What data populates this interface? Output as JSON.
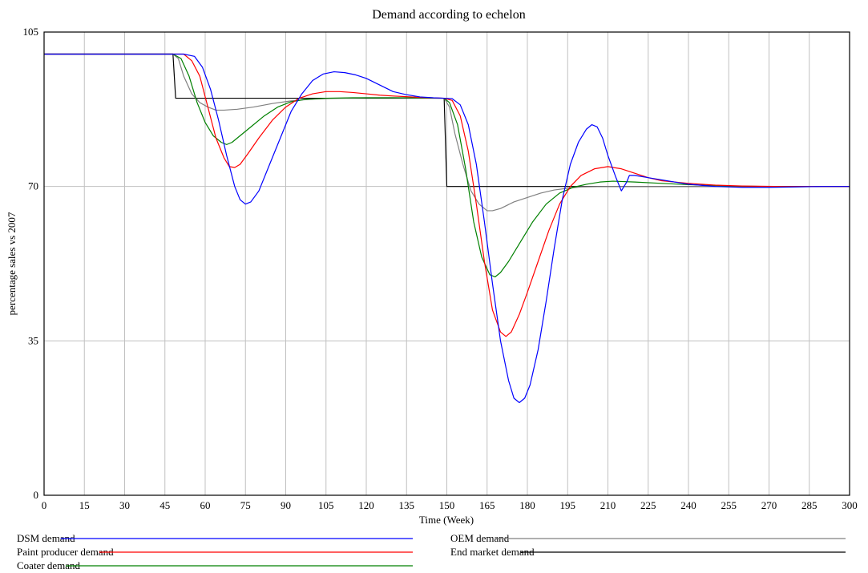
{
  "chart_data": {
    "type": "line",
    "title": "Demand according to echelon",
    "xlabel": "Time (Week)",
    "ylabel": "percentage sales vs 2007",
    "xlim": [
      0,
      300
    ],
    "ylim": [
      0,
      105
    ],
    "x_ticks": [
      "0",
      "15",
      "30",
      "45",
      "60",
      "75",
      "90",
      "105",
      "120",
      "135",
      "150",
      "165",
      "180",
      "195",
      "210",
      "225",
      "240",
      "255",
      "270",
      "285",
      "300"
    ],
    "y_ticks": [
      "0",
      "35",
      "70",
      "105"
    ],
    "grid": true,
    "legend_position": "bottom",
    "series": [
      {
        "name": "DSM demand",
        "color": "#0000ff",
        "points": [
          [
            0,
            100
          ],
          [
            48,
            100
          ],
          [
            52,
            100
          ],
          [
            56,
            99.5
          ],
          [
            59,
            97
          ],
          [
            62,
            92
          ],
          [
            65,
            85
          ],
          [
            68,
            77
          ],
          [
            71,
            70
          ],
          [
            73,
            67
          ],
          [
            75,
            66
          ],
          [
            77,
            66.5
          ],
          [
            80,
            69
          ],
          [
            84,
            75
          ],
          [
            88,
            81
          ],
          [
            92,
            87
          ],
          [
            96,
            91
          ],
          [
            100,
            94
          ],
          [
            104,
            95.5
          ],
          [
            108,
            96
          ],
          [
            112,
            95.8
          ],
          [
            116,
            95.3
          ],
          [
            120,
            94.5
          ],
          [
            125,
            93
          ],
          [
            130,
            91.5
          ],
          [
            135,
            90.8
          ],
          [
            140,
            90.3
          ],
          [
            145,
            90.1
          ],
          [
            149,
            90
          ],
          [
            152,
            89.9
          ],
          [
            155,
            88.5
          ],
          [
            158,
            84
          ],
          [
            161,
            75
          ],
          [
            164,
            62
          ],
          [
            167,
            48
          ],
          [
            170,
            35
          ],
          [
            173,
            26
          ],
          [
            175,
            22
          ],
          [
            177,
            21
          ],
          [
            179,
            22
          ],
          [
            181,
            25
          ],
          [
            184,
            33
          ],
          [
            187,
            44
          ],
          [
            190,
            56
          ],
          [
            193,
            67
          ],
          [
            196,
            75
          ],
          [
            199,
            80
          ],
          [
            202,
            83
          ],
          [
            204,
            84
          ],
          [
            206,
            83.5
          ],
          [
            208,
            81
          ],
          [
            210,
            77
          ],
          [
            213,
            72
          ],
          [
            215,
            69
          ],
          [
            217,
            71
          ],
          [
            218,
            72.5
          ],
          [
            220,
            72.5
          ],
          [
            225,
            72
          ],
          [
            230,
            71.5
          ],
          [
            235,
            71
          ],
          [
            240,
            70.5
          ],
          [
            250,
            70
          ],
          [
            260,
            69.8
          ],
          [
            270,
            69.8
          ],
          [
            280,
            69.9
          ],
          [
            290,
            70
          ],
          [
            300,
            70
          ]
        ]
      },
      {
        "name": "Paint producer demand",
        "color": "#ff0000",
        "points": [
          [
            0,
            100
          ],
          [
            48,
            100
          ],
          [
            52,
            100
          ],
          [
            55,
            98.5
          ],
          [
            58,
            95
          ],
          [
            61,
            88
          ],
          [
            64,
            81
          ],
          [
            67,
            76.5
          ],
          [
            69,
            74.5
          ],
          [
            71,
            74.3
          ],
          [
            73,
            75
          ],
          [
            76,
            77.5
          ],
          [
            80,
            81
          ],
          [
            85,
            85
          ],
          [
            90,
            88
          ],
          [
            95,
            90
          ],
          [
            100,
            91
          ],
          [
            105,
            91.5
          ],
          [
            110,
            91.5
          ],
          [
            115,
            91.3
          ],
          [
            120,
            91
          ],
          [
            125,
            90.7
          ],
          [
            130,
            90.5
          ],
          [
            140,
            90.2
          ],
          [
            149,
            90
          ],
          [
            152,
            89.5
          ],
          [
            155,
            86
          ],
          [
            158,
            78
          ],
          [
            161,
            66
          ],
          [
            164,
            53
          ],
          [
            167,
            42
          ],
          [
            170,
            37
          ],
          [
            172,
            36
          ],
          [
            174,
            37
          ],
          [
            177,
            41
          ],
          [
            180,
            46
          ],
          [
            184,
            53
          ],
          [
            188,
            60
          ],
          [
            192,
            66
          ],
          [
            196,
            70
          ],
          [
            200,
            72.5
          ],
          [
            205,
            74
          ],
          [
            210,
            74.5
          ],
          [
            215,
            74
          ],
          [
            220,
            73
          ],
          [
            225,
            72
          ],
          [
            230,
            71.3
          ],
          [
            240,
            70.7
          ],
          [
            250,
            70.3
          ],
          [
            260,
            70.1
          ],
          [
            275,
            70
          ],
          [
            300,
            70
          ]
        ]
      },
      {
        "name": "Coater demand",
        "color": "#008000",
        "points": [
          [
            0,
            100
          ],
          [
            48,
            100
          ],
          [
            51,
            99
          ],
          [
            54,
            95
          ],
          [
            57,
            89
          ],
          [
            60,
            84.5
          ],
          [
            63,
            81.5
          ],
          [
            66,
            80
          ],
          [
            68,
            79.5
          ],
          [
            70,
            80
          ],
          [
            73,
            81.5
          ],
          [
            77,
            83.5
          ],
          [
            82,
            86
          ],
          [
            87,
            88
          ],
          [
            92,
            89.2
          ],
          [
            97,
            89.7
          ],
          [
            105,
            90
          ],
          [
            115,
            90.1
          ],
          [
            125,
            90.1
          ],
          [
            135,
            90.1
          ],
          [
            149,
            90
          ],
          [
            151,
            89
          ],
          [
            154,
            84
          ],
          [
            157,
            74
          ],
          [
            160,
            62
          ],
          [
            163,
            54
          ],
          [
            166,
            50
          ],
          [
            168,
            49.5
          ],
          [
            170,
            50.5
          ],
          [
            173,
            53
          ],
          [
            177,
            57
          ],
          [
            182,
            62
          ],
          [
            187,
            66
          ],
          [
            192,
            68.5
          ],
          [
            197,
            69.8
          ],
          [
            202,
            70.5
          ],
          [
            207,
            71
          ],
          [
            212,
            71.2
          ],
          [
            220,
            71
          ],
          [
            230,
            70.7
          ],
          [
            240,
            70.4
          ],
          [
            255,
            70.1
          ],
          [
            270,
            70
          ],
          [
            300,
            70
          ]
        ]
      },
      {
        "name": "OEM demand",
        "color": "#808080",
        "points": [
          [
            0,
            100
          ],
          [
            48,
            100
          ],
          [
            50,
            99
          ],
          [
            52,
            95
          ],
          [
            55,
            91
          ],
          [
            58,
            89
          ],
          [
            61,
            88
          ],
          [
            64,
            87.3
          ],
          [
            67,
            87.3
          ],
          [
            72,
            87.5
          ],
          [
            78,
            88
          ],
          [
            85,
            88.8
          ],
          [
            92,
            89.4
          ],
          [
            100,
            89.8
          ],
          [
            110,
            90
          ],
          [
            120,
            90.1
          ],
          [
            130,
            90.1
          ],
          [
            149,
            90
          ],
          [
            151,
            88
          ],
          [
            153,
            82
          ],
          [
            156,
            75
          ],
          [
            159,
            69
          ],
          [
            162,
            66
          ],
          [
            165,
            64.5
          ],
          [
            167,
            64.5
          ],
          [
            170,
            65
          ],
          [
            175,
            66.5
          ],
          [
            180,
            67.5
          ],
          [
            185,
            68.5
          ],
          [
            190,
            69.2
          ],
          [
            195,
            69.6
          ],
          [
            200,
            69.9
          ],
          [
            210,
            70
          ],
          [
            230,
            70
          ],
          [
            300,
            70
          ]
        ]
      },
      {
        "name": "End market demand",
        "color": "#000000",
        "points": [
          [
            0,
            100
          ],
          [
            48,
            100
          ],
          [
            49,
            90
          ],
          [
            149,
            90
          ],
          [
            150,
            70
          ],
          [
            300,
            70
          ]
        ]
      }
    ]
  }
}
